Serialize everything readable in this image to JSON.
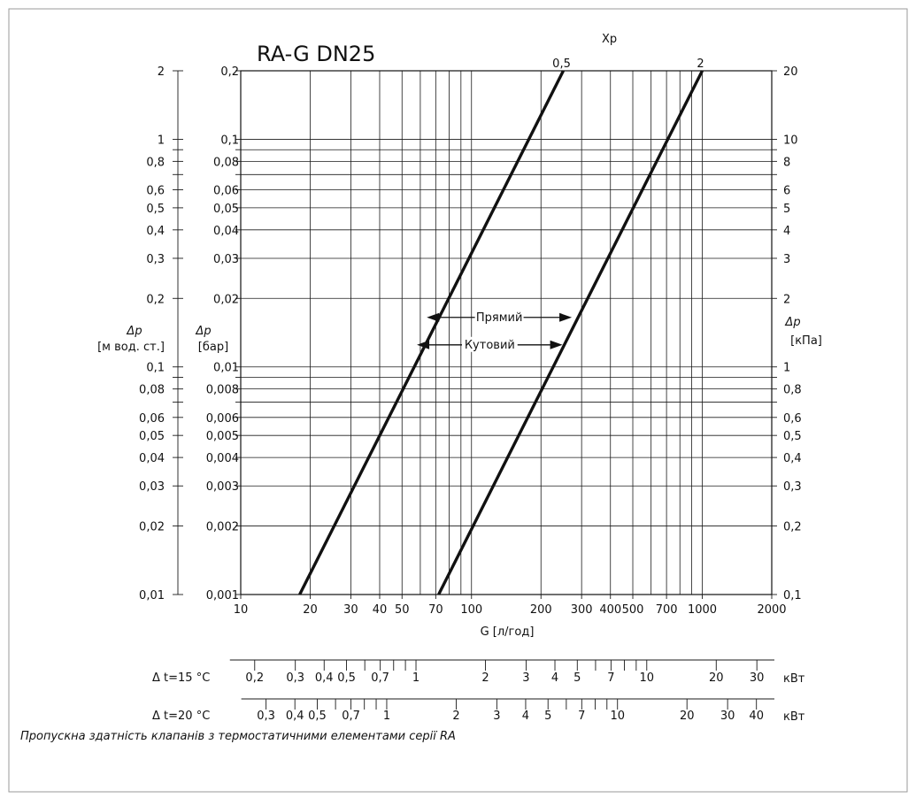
{
  "frame_color": "#9a9a9a",
  "line_color": "#111111",
  "chart_data": {
    "type": "line",
    "title": "RA-G DN25",
    "x_scale": "log",
    "y_scale": "log",
    "grid": true,
    "xlim": [
      10,
      2000
    ],
    "ylim_bar": [
      0.001,
      0.2
    ],
    "xlabel": "G [л/год]",
    "x_ticks": [
      10,
      20,
      30,
      40,
      50,
      70,
      100,
      200,
      300,
      400,
      500,
      700,
      1000,
      2000
    ],
    "y_ticks_bar": [
      0.001,
      0.002,
      0.003,
      0.004,
      0.005,
      0.006,
      0.008,
      0.01,
      0.02,
      0.03,
      0.04,
      0.05,
      0.06,
      0.08,
      0.1,
      0.2
    ],
    "y_axes": {
      "left_outer": {
        "label": [
          "Δp",
          "[м вод. ст.]"
        ],
        "ticks": [
          "0,01",
          "0,02",
          "0,03",
          "0,04",
          "0,05",
          "0,06",
          "0,08",
          "0,1",
          "0,2",
          "0,3",
          "0,4",
          "0,5",
          "0,6",
          "0,8",
          "1",
          "2"
        ]
      },
      "left_inner": {
        "label": [
          "Δp",
          "[бар]"
        ],
        "ticks": [
          "0,001",
          "0,002",
          "0,003",
          "0,004",
          "0,005",
          "0,006",
          "0,008",
          "0,01",
          "0,02",
          "0,03",
          "0,04",
          "0,05",
          "0,06",
          "0,08",
          "0,1",
          "0,2"
        ]
      },
      "right": {
        "label": [
          "Δp",
          "[кПа]"
        ],
        "ticks": [
          "0,1",
          "0,2",
          "0,3",
          "0,4",
          "0,5",
          "0,6",
          "0,8",
          "1",
          "2",
          "3",
          "4",
          "5",
          "6",
          "8",
          "10",
          "20"
        ]
      }
    },
    "x_tick_labels": [
      "10",
      "20",
      "30",
      "40",
      "50",
      "70",
      "100",
      "200",
      "300",
      "400",
      "500",
      "700",
      "1000",
      "2000"
    ],
    "xp_label": "Xp",
    "series": [
      {
        "name": "0,5",
        "x": [
          18,
          250
        ],
        "y_bar": [
          0.001,
          0.2
        ]
      },
      {
        "name": "2",
        "x": [
          72,
          1000
        ],
        "y_bar": [
          0.001,
          0.2
        ]
      }
    ],
    "annotations": [
      {
        "text": "Прямий",
        "from_x": 64,
        "to_x": 272,
        "y_bar": 0.0165
      },
      {
        "text": "Кутовий",
        "from_x": 58,
        "to_x": 248,
        "y_bar": 0.0125
      }
    ],
    "power_scales": [
      {
        "label": "Δ t=15 °C",
        "unit": "кВт",
        "ticks": [
          0.2,
          0.3,
          0.4,
          0.5,
          0.6,
          0.7,
          0.8,
          0.9,
          1,
          2,
          3,
          4,
          5,
          6,
          7,
          8,
          9,
          10,
          20,
          30
        ],
        "labels": [
          {
            "v": 0.2,
            "t": "0,2"
          },
          {
            "v": 0.3,
            "t": "0,3"
          },
          {
            "v": 0.4,
            "t": "0,4"
          },
          {
            "v": 0.5,
            "t": "0,5"
          },
          {
            "v": 0.7,
            "t": "0,7"
          },
          {
            "v": 1,
            "t": "1"
          },
          {
            "v": 2,
            "t": "2"
          },
          {
            "v": 3,
            "t": "3"
          },
          {
            "v": 4,
            "t": "4"
          },
          {
            "v": 5,
            "t": "5"
          },
          {
            "v": 7,
            "t": "7"
          },
          {
            "v": 10,
            "t": "10"
          },
          {
            "v": 20,
            "t": "20"
          },
          {
            "v": 30,
            "t": "30"
          }
        ]
      },
      {
        "label": "Δ t=20 °C",
        "unit": "кВт",
        "ticks": [
          0.3,
          0.4,
          0.5,
          0.6,
          0.7,
          0.8,
          0.9,
          1,
          2,
          3,
          4,
          5,
          6,
          7,
          8,
          9,
          10,
          20,
          30,
          40
        ],
        "labels": [
          {
            "v": 0.3,
            "t": "0,3"
          },
          {
            "v": 0.4,
            "t": "0,4"
          },
          {
            "v": 0.5,
            "t": "0,5"
          },
          {
            "v": 0.7,
            "t": "0,7"
          },
          {
            "v": 1,
            "t": "1"
          },
          {
            "v": 2,
            "t": "2"
          },
          {
            "v": 3,
            "t": "3"
          },
          {
            "v": 4,
            "t": "4"
          },
          {
            "v": 5,
            "t": "5"
          },
          {
            "v": 7,
            "t": "7"
          },
          {
            "v": 10,
            "t": "10"
          },
          {
            "v": 20,
            "t": "20"
          },
          {
            "v": 30,
            "t": "30"
          },
          {
            "v": 40,
            "t": "40"
          }
        ]
      }
    ]
  },
  "caption": "Пропускна здатність клапанів з термостатичними елементами серії RA"
}
